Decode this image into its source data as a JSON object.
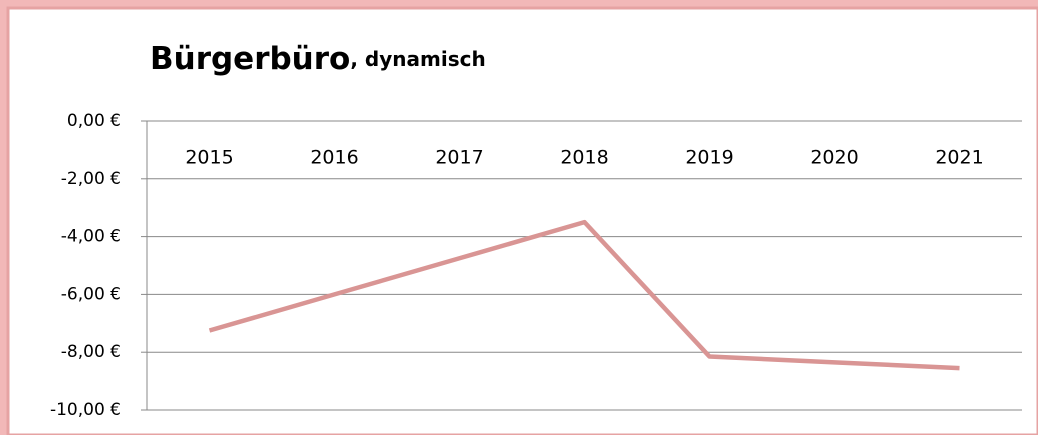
{
  "chart_data": {
    "type": "line",
    "title": "Bürgerbüro",
    "subtitle": ", dynamisch",
    "categories": [
      "2015",
      "2016",
      "2017",
      "2018",
      "2019",
      "2020",
      "2021"
    ],
    "series": [
      {
        "name": "Bürgerbüro, dynamisch",
        "color": "#d99594",
        "values": [
          -7.25,
          -6.0,
          -4.75,
          -3.5,
          -8.15,
          -8.35,
          -8.55
        ]
      }
    ],
    "ylim": [
      -10,
      0
    ],
    "yticks": [
      {
        "value": 0,
        "label": "0,00 €"
      },
      {
        "value": -2,
        "label": "-2,00 €"
      },
      {
        "value": -4,
        "label": "-4,00 €"
      },
      {
        "value": -6,
        "label": "-6,00 €"
      },
      {
        "value": -8,
        "label": "-8,00 €"
      },
      {
        "value": -10,
        "label": "-10,00 €"
      }
    ],
    "grid": true
  }
}
